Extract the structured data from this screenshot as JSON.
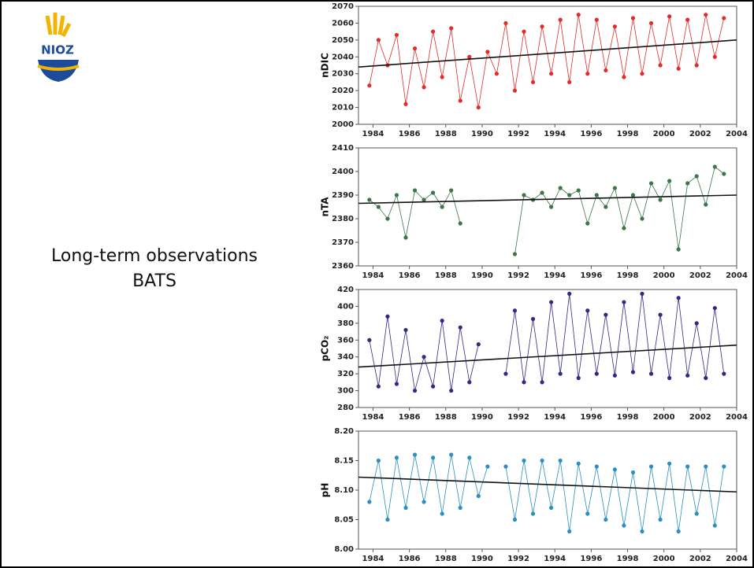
{
  "slide": {
    "logo": "NIOZ",
    "lines": [
      "Long-term observations",
      "BATS"
    ]
  },
  "chart_data": [
    {
      "type": "line",
      "ylabel": "nDIC",
      "color": "#e32b2b",
      "x": [
        1983.8,
        1984.3,
        1984.8,
        1985.3,
        1985.8,
        1986.3,
        1986.8,
        1987.3,
        1987.8,
        1988.3,
        1988.8,
        1989.3,
        1989.8,
        1990.3,
        1990.8,
        1991.3,
        1991.8,
        1992.3,
        1992.8,
        1993.3,
        1993.8,
        1994.3,
        1994.8,
        1995.3,
        1995.8,
        1996.3,
        1996.8,
        1997.3,
        1997.8,
        1998.3,
        1998.8,
        1999.3,
        1999.8,
        2000.3,
        2000.8,
        2001.3,
        2001.8,
        2002.3,
        2002.8,
        2003.3
      ],
      "values": [
        2023,
        2050,
        2035,
        2053,
        2012,
        2045,
        2022,
        2055,
        2028,
        2057,
        2014,
        2040,
        2010,
        2043,
        2030,
        2060,
        2020,
        2055,
        2025,
        2058,
        2030,
        2062,
        2025,
        2065,
        2030,
        2062,
        2032,
        2058,
        2028,
        2063,
        2030,
        2060,
        2035,
        2064,
        2033,
        2062,
        2035,
        2065,
        2040,
        2063
      ],
      "trend": {
        "x": [
          1983.2,
          2004
        ],
        "values": [
          2034,
          2050
        ]
      },
      "xlim": [
        1983.2,
        2004
      ],
      "xticks": [
        1984,
        1986,
        1988,
        1990,
        1992,
        1994,
        1996,
        1998,
        2000,
        2002,
        2004
      ],
      "ylim": [
        2000,
        2070
      ],
      "yticks": [
        2000,
        2010,
        2020,
        2030,
        2040,
        2050,
        2060,
        2070
      ]
    },
    {
      "type": "line",
      "ylabel": "nTA",
      "color": "#3d7549",
      "x": [
        1983.8,
        1984.3,
        1984.8,
        1985.3,
        1985.8,
        1986.3,
        1986.8,
        1987.3,
        1987.8,
        1988.3,
        1988.8,
        1989.3,
        1989.8,
        1990.3,
        1990.8,
        1991.3,
        1991.8,
        1992.3,
        1992.8,
        1993.3,
        1993.8,
        1994.3,
        1994.8,
        1995.3,
        1995.8,
        1996.3,
        1996.8,
        1997.3,
        1997.8,
        1998.3,
        1998.8,
        1999.3,
        1999.8,
        2000.3,
        2000.8,
        2001.3,
        2001.8,
        2002.3,
        2002.8,
        2003.3
      ],
      "values": [
        2388,
        2385,
        2380,
        2390,
        2372,
        2392,
        2388,
        2391,
        2385,
        2392,
        2378,
        null,
        null,
        null,
        null,
        null,
        2365,
        2390,
        2388,
        2391,
        2385,
        2393,
        2390,
        2392,
        2378,
        2390,
        2385,
        2393,
        2376,
        2390,
        2380,
        2395,
        2388,
        2396,
        2367,
        2395,
        2398,
        2386,
        2402,
        2399
      ],
      "trend": {
        "x": [
          1983.2,
          2004
        ],
        "values": [
          2386.5,
          2390
        ]
      },
      "xlim": [
        1983.2,
        2004
      ],
      "xticks": [
        1984,
        1986,
        1988,
        1990,
        1992,
        1994,
        1996,
        1998,
        2000,
        2002,
        2004
      ],
      "ylim": [
        2360,
        2410
      ],
      "yticks": [
        2360,
        2370,
        2380,
        2390,
        2400,
        2410
      ]
    },
    {
      "type": "line",
      "ylabel": "pCO₂",
      "color": "#2e2a86",
      "x": [
        1983.8,
        1984.3,
        1984.8,
        1985.3,
        1985.8,
        1986.3,
        1986.8,
        1987.3,
        1987.8,
        1988.3,
        1988.8,
        1989.3,
        1989.8,
        1990.3,
        1990.8,
        1991.3,
        1991.8,
        1992.3,
        1992.8,
        1993.3,
        1993.8,
        1994.3,
        1994.8,
        1995.3,
        1995.8,
        1996.3,
        1996.8,
        1997.3,
        1997.8,
        1998.3,
        1998.8,
        1999.3,
        1999.8,
        2000.3,
        2000.8,
        2001.3,
        2001.8,
        2002.3,
        2002.8,
        2003.3
      ],
      "values": [
        360,
        305,
        388,
        308,
        372,
        300,
        340,
        305,
        383,
        300,
        375,
        310,
        355,
        null,
        null,
        320,
        395,
        310,
        385,
        310,
        405,
        320,
        415,
        315,
        395,
        320,
        390,
        318,
        405,
        322,
        415,
        320,
        390,
        315,
        410,
        318,
        380,
        315,
        398,
        320
      ],
      "trend": {
        "x": [
          1983.2,
          2004
        ],
        "values": [
          328,
          354
        ]
      },
      "xlim": [
        1983.2,
        2004
      ],
      "xticks": [
        1984,
        1986,
        1988,
        1990,
        1992,
        1994,
        1996,
        1998,
        2000,
        2002,
        2004
      ],
      "ylim": [
        280,
        420
      ],
      "yticks": [
        280,
        300,
        320,
        340,
        360,
        380,
        400,
        420
      ]
    },
    {
      "type": "line",
      "ylabel": "pH",
      "color": "#2b8fc4",
      "x": [
        1983.8,
        1984.3,
        1984.8,
        1985.3,
        1985.8,
        1986.3,
        1986.8,
        1987.3,
        1987.8,
        1988.3,
        1988.8,
        1989.3,
        1989.8,
        1990.3,
        1990.8,
        1991.3,
        1991.8,
        1992.3,
        1992.8,
        1993.3,
        1993.8,
        1994.3,
        1994.8,
        1995.3,
        1995.8,
        1996.3,
        1996.8,
        1997.3,
        1997.8,
        1998.3,
        1998.8,
        1999.3,
        1999.8,
        2000.3,
        2000.8,
        2001.3,
        2001.8,
        2002.3,
        2002.8,
        2003.3
      ],
      "values": [
        8.08,
        8.15,
        8.05,
        8.155,
        8.07,
        8.16,
        8.08,
        8.155,
        8.06,
        8.16,
        8.07,
        8.155,
        8.09,
        8.14,
        null,
        8.14,
        8.05,
        8.15,
        8.06,
        8.15,
        8.07,
        8.15,
        8.03,
        8.145,
        8.06,
        8.14,
        8.05,
        8.135,
        8.04,
        8.13,
        8.03,
        8.14,
        8.05,
        8.145,
        8.03,
        8.14,
        8.06,
        8.14,
        8.04,
        8.14
      ],
      "trend": {
        "x": [
          1983.2,
          2004
        ],
        "values": [
          8.122,
          8.097
        ]
      },
      "xlim": [
        1983.2,
        2004
      ],
      "xticks": [
        1984,
        1986,
        1988,
        1990,
        1992,
        1994,
        1996,
        1998,
        2000,
        2002,
        2004
      ],
      "ylim": [
        8.0,
        8.2
      ],
      "yticks": [
        {
          "value": 8.0,
          "label": "8.00"
        },
        8.05,
        {
          "value": 8.1,
          "label": "8.10"
        },
        8.15,
        {
          "value": 8.2,
          "label": "8.20"
        }
      ]
    }
  ]
}
